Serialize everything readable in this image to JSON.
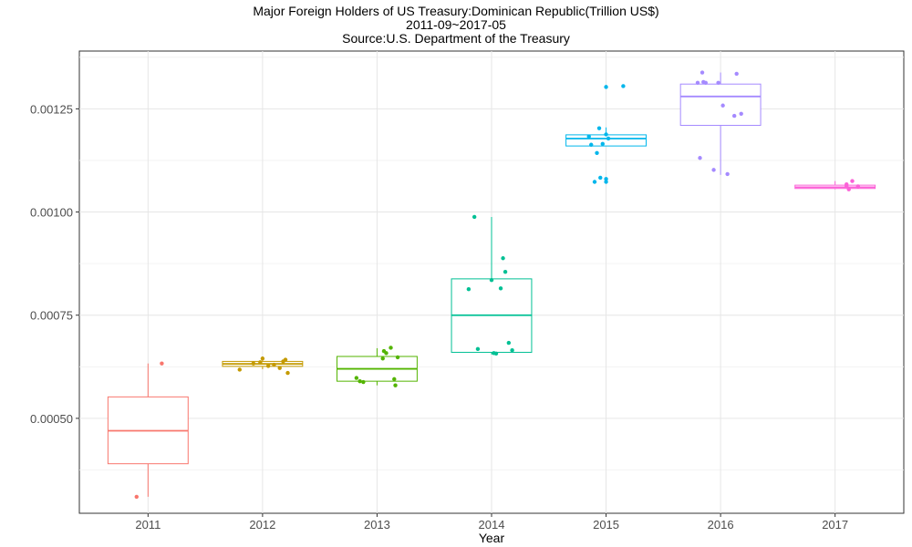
{
  "chart_data": {
    "type": "box",
    "title": "Major Foreign Holders of US Treasury:Dominican Republic(Trillion US$)",
    "subtitle": "2011-09~2017-05",
    "source": "Source:U.S. Department of the Treasury",
    "xlabel": "Year",
    "ylabel": "",
    "categories": [
      "2011",
      "2012",
      "2013",
      "2014",
      "2015",
      "2016",
      "2017"
    ],
    "ylim": [
      0.00027,
      0.00139
    ],
    "y_ticks": [
      0.0005,
      0.00075,
      0.001,
      0.00125
    ],
    "y_tick_labels": [
      "0.00050",
      "0.00075",
      "0.00100",
      "0.00125"
    ],
    "grid": true,
    "legend": "none",
    "series": [
      {
        "category": "2011",
        "color": "#F8766D",
        "box": {
          "min": 0.00031,
          "q1": 0.00039,
          "median": 0.00047,
          "q3": 0.000552,
          "max": 0.000633
        },
        "points": [
          {
            "x": 0.12,
            "y": 0.000633
          },
          {
            "x": -0.1,
            "y": 0.00031
          }
        ]
      },
      {
        "category": "2012",
        "color": "#C49A00",
        "box": {
          "min": 0.000619,
          "q1": 0.000626,
          "median": 0.000632,
          "q3": 0.000638,
          "max": 0.000647
        },
        "points": [
          {
            "x": -0.2,
            "y": 0.000618
          },
          {
            "x": -0.08,
            "y": 0.000633
          },
          {
            "x": -0.02,
            "y": 0.000636
          },
          {
            "x": 0.0,
            "y": 0.000645
          },
          {
            "x": 0.05,
            "y": 0.000627
          },
          {
            "x": 0.1,
            "y": 0.00063
          },
          {
            "x": 0.15,
            "y": 0.000622
          },
          {
            "x": 0.18,
            "y": 0.000638
          },
          {
            "x": 0.2,
            "y": 0.000642
          },
          {
            "x": 0.22,
            "y": 0.00061
          }
        ]
      },
      {
        "category": "2013",
        "color": "#53B400",
        "box": {
          "min": 0.00058,
          "q1": 0.00059,
          "median": 0.00062,
          "q3": 0.00065,
          "max": 0.00067
        },
        "points": [
          {
            "x": -0.18,
            "y": 0.000598
          },
          {
            "x": -0.15,
            "y": 0.00059
          },
          {
            "x": -0.12,
            "y": 0.000588
          },
          {
            "x": 0.05,
            "y": 0.000645
          },
          {
            "x": 0.06,
            "y": 0.000663
          },
          {
            "x": 0.08,
            "y": 0.000658
          },
          {
            "x": 0.12,
            "y": 0.000671
          },
          {
            "x": 0.15,
            "y": 0.000595
          },
          {
            "x": 0.16,
            "y": 0.00058
          },
          {
            "x": 0.18,
            "y": 0.000648
          }
        ]
      },
      {
        "category": "2014",
        "color": "#00C094",
        "box": {
          "min": 0.000655,
          "q1": 0.00066,
          "median": 0.00075,
          "q3": 0.000838,
          "max": 0.000988
        },
        "points": [
          {
            "x": -0.15,
            "y": 0.000988
          },
          {
            "x": -0.2,
            "y": 0.000813
          },
          {
            "x": -0.12,
            "y": 0.000668
          },
          {
            "x": 0.0,
            "y": 0.000835
          },
          {
            "x": 0.02,
            "y": 0.000658
          },
          {
            "x": 0.04,
            "y": 0.000657
          },
          {
            "x": 0.08,
            "y": 0.000815
          },
          {
            "x": 0.1,
            "y": 0.000888
          },
          {
            "x": 0.12,
            "y": 0.000855
          },
          {
            "x": 0.15,
            "y": 0.000683
          },
          {
            "x": 0.18,
            "y": 0.000665
          }
        ]
      },
      {
        "category": "2015",
        "color": "#00B6EB",
        "box": {
          "min": 0.00116,
          "q1": 0.00116,
          "median": 0.001178,
          "q3": 0.001187,
          "max": 0.001205
        },
        "points": [
          {
            "x": -0.15,
            "y": 0.001183
          },
          {
            "x": -0.13,
            "y": 0.001163
          },
          {
            "x": -0.1,
            "y": 0.001073
          },
          {
            "x": -0.08,
            "y": 0.001143
          },
          {
            "x": -0.06,
            "y": 0.001203
          },
          {
            "x": -0.05,
            "y": 0.001083
          },
          {
            "x": -0.03,
            "y": 0.001165
          },
          {
            "x": 0.0,
            "y": 0.001188
          },
          {
            "x": 0.02,
            "y": 0.001178
          },
          {
            "x": 0.0,
            "y": 0.00108
          },
          {
            "x": 0.0,
            "y": 0.001073
          },
          {
            "x": 0.0,
            "y": 0.001303
          },
          {
            "x": 0.15,
            "y": 0.001305
          }
        ]
      },
      {
        "category": "2016",
        "color": "#A58AFF",
        "box": {
          "min": 0.00109,
          "q1": 0.00121,
          "median": 0.00128,
          "q3": 0.00131,
          "max": 0.001338
        },
        "points": [
          {
            "x": -0.2,
            "y": 0.001313
          },
          {
            "x": -0.18,
            "y": 0.001131
          },
          {
            "x": -0.16,
            "y": 0.001338
          },
          {
            "x": -0.15,
            "y": 0.001315
          },
          {
            "x": -0.13,
            "y": 0.001313
          },
          {
            "x": -0.06,
            "y": 0.001102
          },
          {
            "x": -0.02,
            "y": 0.001313
          },
          {
            "x": 0.02,
            "y": 0.001258
          },
          {
            "x": 0.06,
            "y": 0.001092
          },
          {
            "x": 0.12,
            "y": 0.001233
          },
          {
            "x": 0.14,
            "y": 0.001335
          },
          {
            "x": 0.18,
            "y": 0.001238
          }
        ]
      },
      {
        "category": "2017",
        "color": "#FB61D7",
        "box": {
          "min": 0.001055,
          "q1": 0.001057,
          "median": 0.00106,
          "q3": 0.001065,
          "max": 0.001075
        },
        "points": [
          {
            "x": 0.1,
            "y": 0.001067
          },
          {
            "x": 0.15,
            "y": 0.001075
          },
          {
            "x": 0.2,
            "y": 0.001062
          },
          {
            "x": 0.1,
            "y": 0.001063
          },
          {
            "x": 0.12,
            "y": 0.001055
          }
        ]
      }
    ]
  }
}
